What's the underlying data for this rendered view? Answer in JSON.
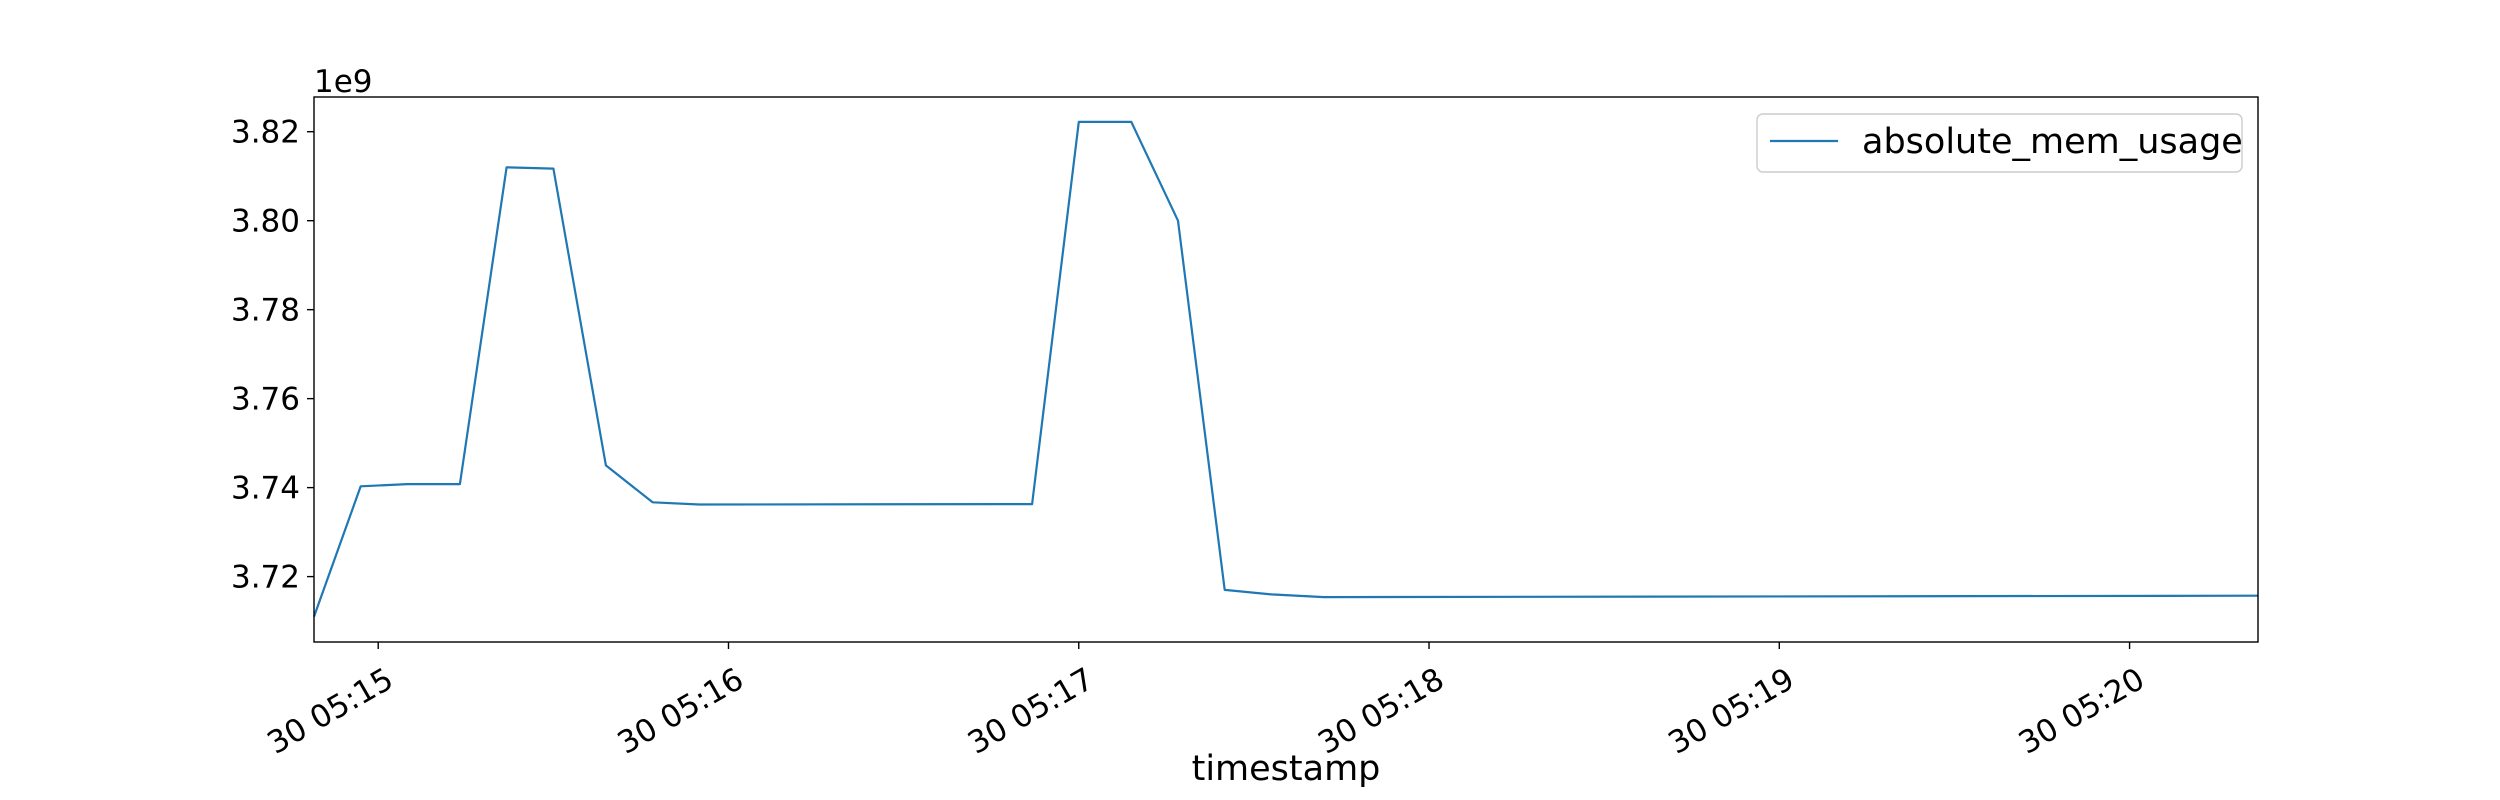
{
  "chart_data": {
    "type": "line",
    "title": "",
    "xlabel": "timestamp",
    "ylabel": "",
    "y_offset_label": "1e9",
    "y_scale_factor": 1000000000,
    "xlim": [
      "30 05:14:49",
      "30 05:20:22"
    ],
    "ylim": [
      3.7053,
      3.8278
    ],
    "y_ticks": [
      {
        "value": 3.72,
        "label": "3.72"
      },
      {
        "value": 3.74,
        "label": "3.74"
      },
      {
        "value": 3.76,
        "label": "3.76"
      },
      {
        "value": 3.78,
        "label": "3.78"
      },
      {
        "value": 3.8,
        "label": "3.80"
      },
      {
        "value": 3.82,
        "label": "3.82"
      }
    ],
    "x_ticks": [
      {
        "value": "30 05:15:00",
        "label": "30 05:15"
      },
      {
        "value": "30 05:16:00",
        "label": "30 05:16"
      },
      {
        "value": "30 05:17:00",
        "label": "30 05:17"
      },
      {
        "value": "30 05:18:00",
        "label": "30 05:18"
      },
      {
        "value": "30 05:19:00",
        "label": "30 05:19"
      },
      {
        "value": "30 05:20:00",
        "label": "30 05:20"
      }
    ],
    "legend": {
      "position": "top-right"
    },
    "grid": false,
    "series": [
      {
        "name": "absolute_mem_usage",
        "color": "#1f77b4",
        "x": [
          "30 05:14:49",
          "30 05:14:57",
          "30 05:15:05",
          "30 05:15:14",
          "30 05:15:22",
          "30 05:15:30",
          "30 05:15:39",
          "30 05:15:47",
          "30 05:15:55",
          "30 05:16:52",
          "30 05:17:00",
          "30 05:17:09",
          "30 05:17:17",
          "30 05:17:25",
          "30 05:17:33",
          "30 05:17:42",
          "30 05:20:22"
        ],
        "y": [
          3.711,
          3.7403,
          3.7408,
          3.7408,
          3.812,
          3.8117,
          3.745,
          3.7367,
          3.7362,
          3.7363,
          3.8222,
          3.8222,
          3.8,
          3.717,
          3.716,
          3.7154,
          3.7157
        ]
      }
    ]
  }
}
